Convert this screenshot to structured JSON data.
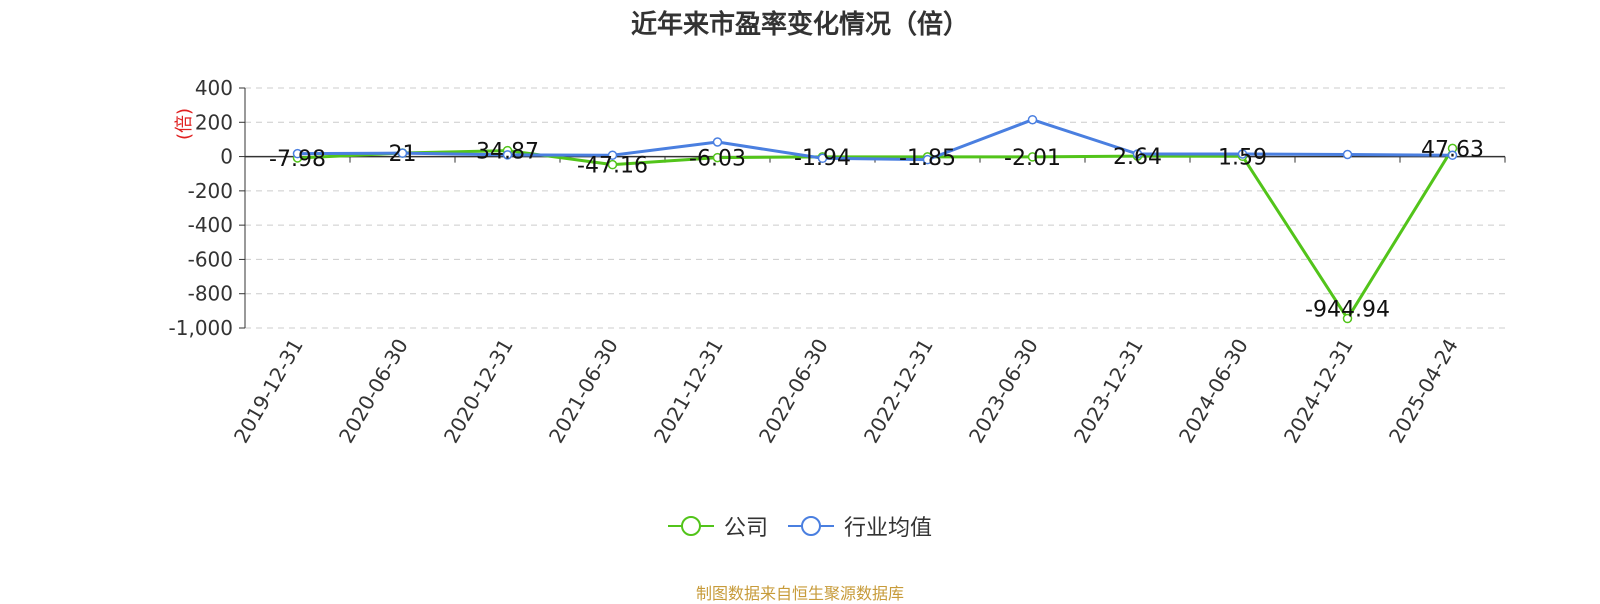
{
  "chart_data": {
    "type": "line",
    "title": "近年来市盈率变化情况（倍）",
    "ylabel": "(倍)",
    "xlabel": "",
    "ylim": [
      -1000,
      400
    ],
    "yticks": [
      400,
      200,
      0,
      -200,
      -400,
      -600,
      -800,
      -1000
    ],
    "ytick_labels": [
      "400",
      "200",
      "0",
      "-200",
      "-400",
      "-600",
      "-800",
      "-1,000"
    ],
    "categories": [
      "2019-12-31",
      "2020-06-30",
      "2020-12-31",
      "2021-06-30",
      "2021-12-31",
      "2022-06-30",
      "2022-12-31",
      "2023-06-30",
      "2023-12-31",
      "2024-06-30",
      "2024-12-31",
      "2025-04-24"
    ],
    "series": [
      {
        "name": "公司",
        "color": "#52c41a",
        "values": [
          -7.98,
          21,
          34.87,
          -47.16,
          -6.03,
          -1.94,
          -1.85,
          -2.01,
          2.64,
          1.59,
          -944.94,
          47.63
        ],
        "labels": [
          "-7.98",
          "21",
          "34.87",
          "-47.16",
          "-6.03",
          "-1.94",
          "-1.85",
          "-2.01",
          "2.64",
          "1.59",
          "-944.94",
          "47.63"
        ]
      },
      {
        "name": "行业均值",
        "color": "#4a7fe0",
        "values": [
          17,
          20,
          10,
          8,
          85,
          -10,
          -18,
          215,
          15,
          15,
          12,
          8
        ]
      }
    ],
    "grid": true,
    "legend_position": "bottom-center",
    "source": "制图数据来自恒生聚源数据库"
  }
}
